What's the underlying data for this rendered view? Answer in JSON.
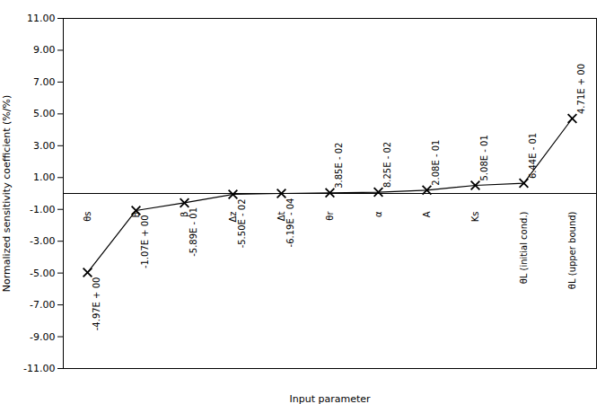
{
  "chart_data": {
    "type": "line",
    "categories": [
      "θs",
      "B",
      "β",
      "Δz",
      "Δt",
      "θr",
      "α",
      "A",
      "Ks",
      "θL (initial cond.)",
      "θL (upper bound)"
    ],
    "values": [
      -4.97,
      -1.07,
      -0.589,
      -0.055,
      -0.000619,
      0.0385,
      0.0825,
      0.208,
      0.508,
      0.644,
      4.71
    ],
    "value_labels": [
      "-4.97E + 00",
      "-1.07E + 00",
      "-5.89E - 01",
      "-5.50E - 02",
      "-6.19E - 04",
      "3.85E - 02",
      "8.25E - 02",
      "2.08E - 01",
      "5.08E - 01",
      "6.44E - 01",
      "4.71E + 00"
    ],
    "data_labels": true,
    "xlabel": "Input parameter",
    "ylabel": "Normalized sensitivity coefficient (%/%)",
    "ylim": [
      -11.0,
      11.0
    ],
    "yticks": [
      {
        "value": -11.0,
        "label": "-11.00"
      },
      {
        "value": -9.0,
        "label": "-9.00"
      },
      {
        "value": -7.0,
        "label": "-7.00"
      },
      {
        "value": -5.0,
        "label": "-5.00"
      },
      {
        "value": -3.0,
        "label": "-3.00"
      },
      {
        "value": -1.0,
        "label": "-1.00"
      },
      {
        "value": 1.0,
        "label": "1.00"
      },
      {
        "value": 3.0,
        "label": "3.00"
      },
      {
        "value": 5.0,
        "label": "5.00"
      },
      {
        "value": 7.0,
        "label": "7.00"
      },
      {
        "value": 9.0,
        "label": "9.00"
      },
      {
        "value": 11.0,
        "label": "11.00"
      }
    ],
    "reference_line_y": 0.0,
    "color": "#000000",
    "marker": "x",
    "tick_labels": "y"
  }
}
